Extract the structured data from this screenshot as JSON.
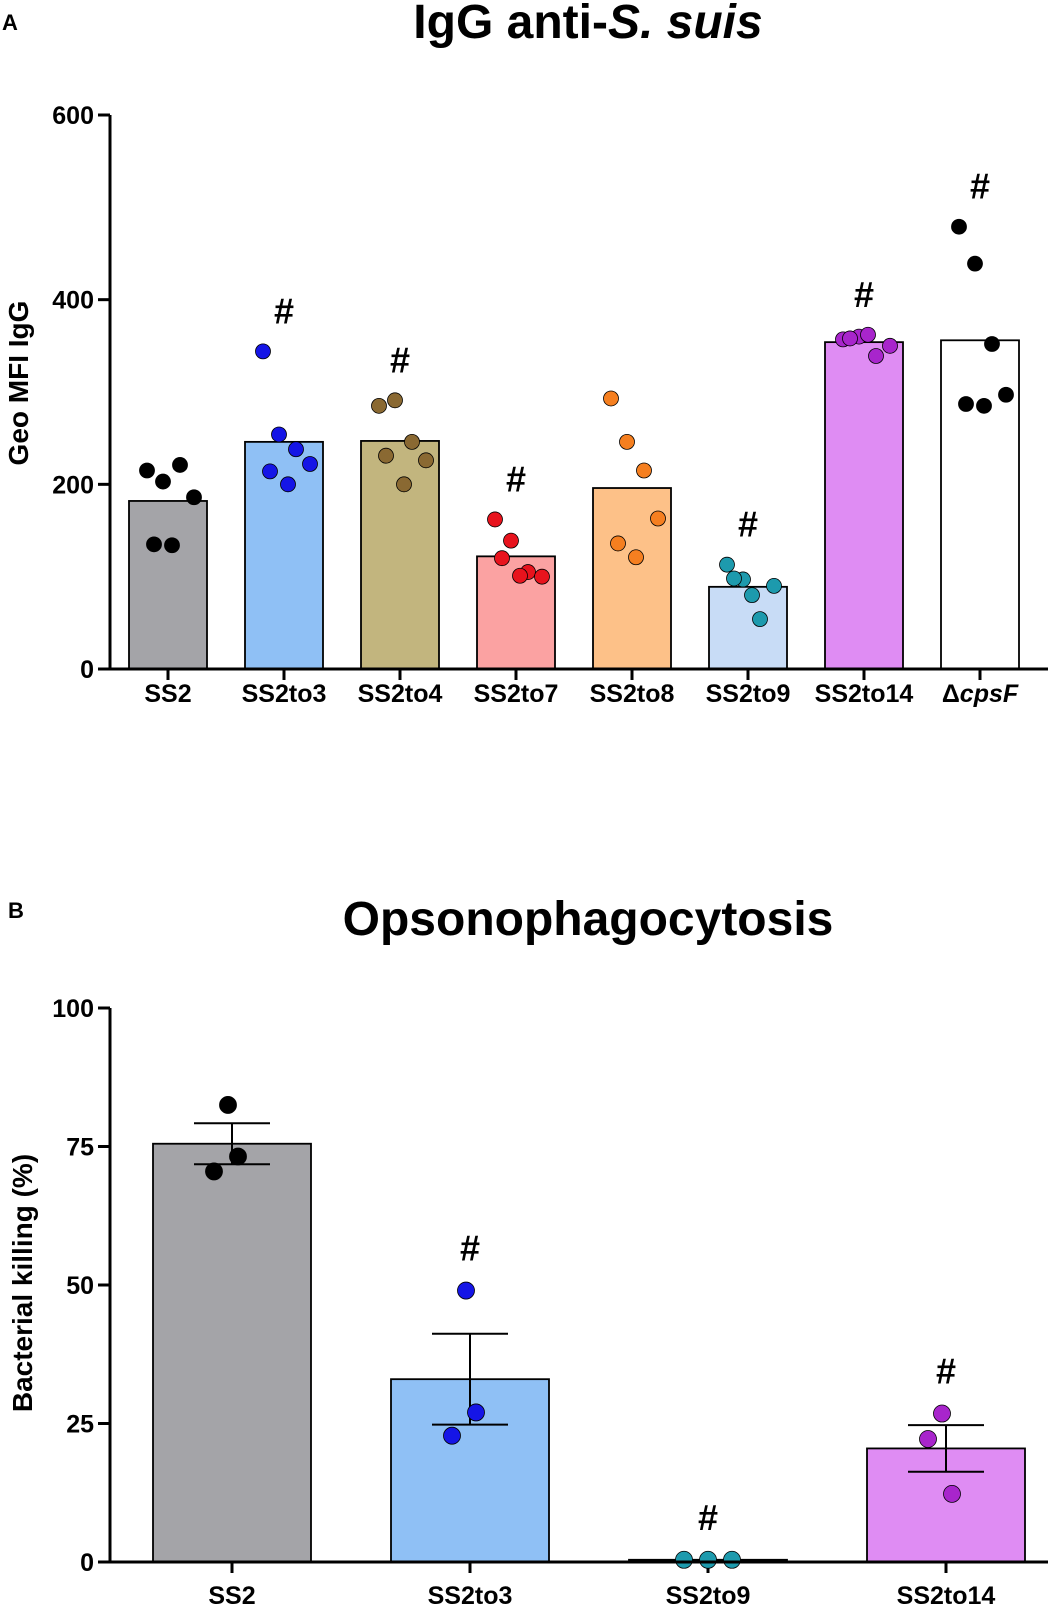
{
  "chart_data": [
    {
      "panel": "A",
      "type": "bar",
      "title_parts": [
        {
          "text": "IgG anti-",
          "italic": false
        },
        {
          "text": "S. suis",
          "italic": true
        }
      ],
      "xlabel": "",
      "ylabel": "Geo MFI IgG",
      "ylim": [
        0,
        600
      ],
      "yticks": [
        0,
        200,
        400,
        600
      ],
      "categories": [
        "SS2",
        "SS2to3",
        "SS2to4",
        "SS2to7",
        "SS2to8",
        "SS2to9",
        "SS2to14",
        "ΔcpsF"
      ],
      "category_label_parts": [
        [
          {
            "text": "SS2",
            "italic": false
          }
        ],
        [
          {
            "text": "SS2to3",
            "italic": false
          }
        ],
        [
          {
            "text": "SS2to4",
            "italic": false
          }
        ],
        [
          {
            "text": "SS2to7",
            "italic": false
          }
        ],
        [
          {
            "text": "SS2to8",
            "italic": false
          }
        ],
        [
          {
            "text": "SS2to9",
            "italic": false
          }
        ],
        [
          {
            "text": "SS2to14",
            "italic": false
          }
        ],
        [
          {
            "text": "Δ",
            "italic": false
          },
          {
            "text": "cpsF",
            "italic": true
          }
        ]
      ],
      "values": [
        182,
        246,
        247,
        122,
        196,
        89,
        354,
        356
      ],
      "bar_colors": [
        "#a4a4a8",
        "#8fc0f5",
        "#c2b57e",
        "#fba2a2",
        "#fdc188",
        "#c8dcf6",
        "#df8cf3",
        "#ffffff"
      ],
      "point_colors": [
        "#000000",
        "#1515e6",
        "#8a6932",
        "#e8131d",
        "#f57f20",
        "#1d9aad",
        "#a825cc",
        "#000000"
      ],
      "points": [
        [
          215,
          203,
          221,
          186,
          134,
          135
        ],
        [
          344,
          254,
          238,
          222,
          200,
          214
        ],
        [
          285,
          291,
          246,
          226,
          200,
          231
        ],
        [
          162,
          139,
          105,
          100,
          101,
          120
        ],
        [
          293,
          246,
          215,
          163,
          121,
          136
        ],
        [
          113,
          97,
          54,
          90,
          80,
          98
        ],
        [
          357,
          360,
          339,
          350,
          362,
          358
        ],
        [
          479,
          439,
          352,
          297,
          285,
          287
        ]
      ],
      "significance": [
        "",
        "#",
        "#",
        "#",
        "",
        "#",
        "#",
        "#"
      ]
    },
    {
      "panel": "B",
      "type": "bar",
      "title_parts": [
        {
          "text": "Opsonophagocytosis",
          "italic": false
        }
      ],
      "xlabel": "",
      "ylabel": "Bacterial killing (%)",
      "ylim": [
        0,
        100
      ],
      "yticks": [
        0,
        25,
        50,
        75,
        100
      ],
      "categories": [
        "SS2",
        "SS2to3",
        "SS2to9",
        "SS2to14"
      ],
      "category_label_parts": [
        [
          {
            "text": "SS2",
            "italic": false
          }
        ],
        [
          {
            "text": "SS2to3",
            "italic": false
          }
        ],
        [
          {
            "text": "SS2to9",
            "italic": false
          }
        ],
        [
          {
            "text": "SS2to14",
            "italic": false
          }
        ]
      ],
      "values": [
        75.5,
        33,
        0.4,
        20.5
      ],
      "error_low": [
        71.8,
        24.8,
        0.4,
        16.3
      ],
      "error_high": [
        79.2,
        41.2,
        0.4,
        24.7
      ],
      "bar_colors": [
        "#a4a4a8",
        "#8fc0f5",
        "#c8dcf6",
        "#df8cf3"
      ],
      "point_colors": [
        "#000000",
        "#1515e6",
        "#1d9aad",
        "#a825cc"
      ],
      "points": [
        [
          82.5,
          70.5,
          73.2
        ],
        [
          49,
          22.8,
          27
        ],
        [
          0.4,
          0.4,
          0.4
        ],
        [
          26.8,
          22.2,
          12.3
        ]
      ],
      "significance": [
        "",
        "#",
        "#",
        "#"
      ]
    }
  ]
}
